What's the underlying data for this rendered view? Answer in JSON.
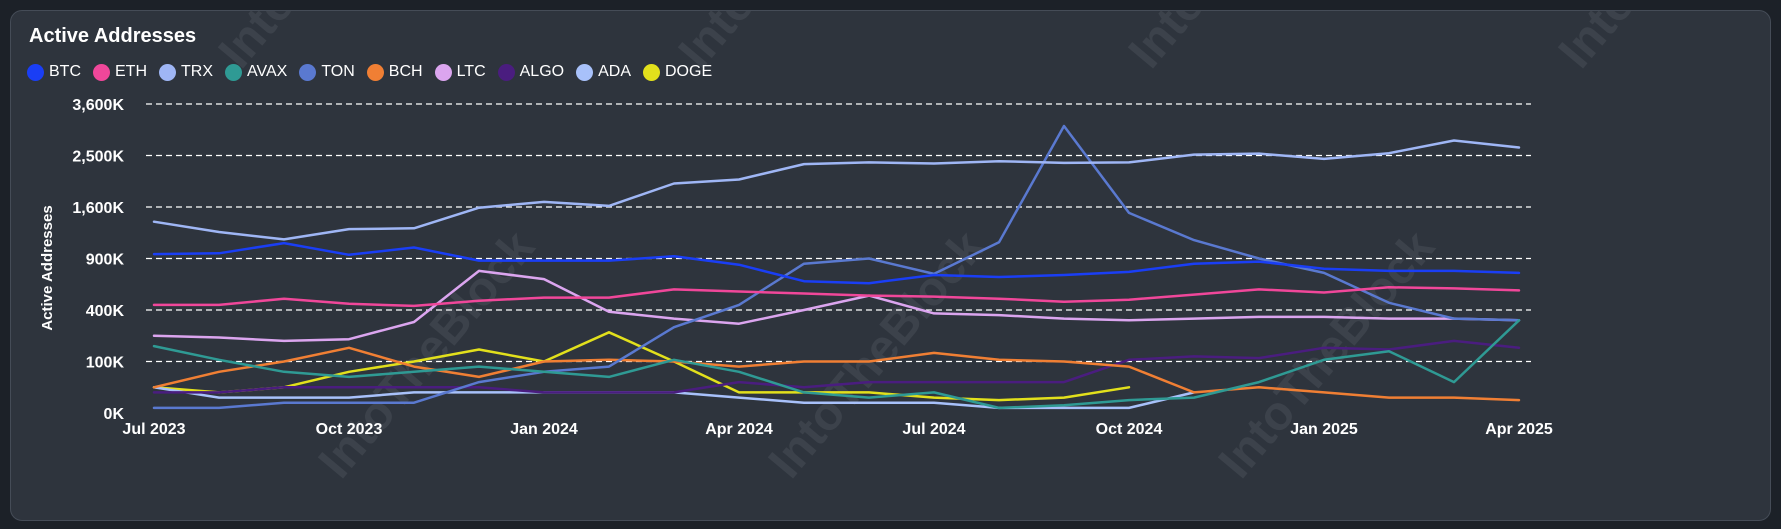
{
  "chart_data": {
    "type": "line",
    "title": "Active Addresses",
    "ylabel": "Active Addresses",
    "xlabel": "",
    "watermark": "IntoTheBlock",
    "y_ticks": [
      {
        "value": 0,
        "label": "0K"
      },
      {
        "value": 100000,
        "label": "100K"
      },
      {
        "value": 400000,
        "label": "400K"
      },
      {
        "value": 900000,
        "label": "900K"
      },
      {
        "value": 1600000,
        "label": "1,600K"
      },
      {
        "value": 2500000,
        "label": "2,500K"
      },
      {
        "value": 3600000,
        "label": "3,600K"
      }
    ],
    "x_ticks": [
      {
        "index": 0,
        "label": "Jul 2023"
      },
      {
        "index": 3,
        "label": "Oct 2023"
      },
      {
        "index": 6,
        "label": "Jan 2024"
      },
      {
        "index": 9,
        "label": "Apr 2024"
      },
      {
        "index": 12,
        "label": "Jul 2024"
      },
      {
        "index": 15,
        "label": "Oct 2024"
      },
      {
        "index": 18,
        "label": "Jan 2025"
      },
      {
        "index": 21,
        "label": "Apr 2025"
      }
    ],
    "x": [
      "Jul 2023",
      "Aug 2023",
      "Sep 2023",
      "Oct 2023",
      "Nov 2023",
      "Dec 2023",
      "Jan 2024",
      "Feb 2024",
      "Mar 2024",
      "Apr 2024",
      "May 2024",
      "Jun 2024",
      "Jul 2024",
      "Aug 2024",
      "Sep 2024",
      "Oct 2024",
      "Nov 2024",
      "Dec 2024",
      "Jan 2025",
      "Feb 2025",
      "Mar 2025",
      "Apr 2025"
    ],
    "series": [
      {
        "name": "BTC",
        "color": "#1a3ef5",
        "values": [
          960000,
          970000,
          1110000,
          950000,
          1050000,
          880000,
          880000,
          880000,
          930000,
          840000,
          680000,
          660000,
          740000,
          720000,
          740000,
          770000,
          850000,
          870000,
          800000,
          780000,
          780000,
          760000
        ]
      },
      {
        "name": "ETH",
        "color": "#f0479a",
        "values": [
          450000,
          450000,
          510000,
          460000,
          440000,
          490000,
          520000,
          520000,
          600000,
          580000,
          560000,
          540000,
          530000,
          510000,
          480000,
          500000,
          550000,
          600000,
          570000,
          620000,
          610000,
          590000
        ]
      },
      {
        "name": "TRX",
        "color": "#9fb6f5",
        "values": [
          1400000,
          1260000,
          1160000,
          1300000,
          1310000,
          1590000,
          1690000,
          1620000,
          2010000,
          2080000,
          2350000,
          2380000,
          2360000,
          2400000,
          2370000,
          2380000,
          2520000,
          2540000,
          2440000,
          2550000,
          2820000,
          2670000
        ]
      },
      {
        "name": "AVAX",
        "color": "#2f9a94",
        "values": [
          190000,
          110000,
          80000,
          70000,
          80000,
          90000,
          80000,
          70000,
          110000,
          80000,
          40000,
          30000,
          40000,
          10000,
          15000,
          25000,
          30000,
          60000,
          110000,
          160000,
          60000,
          340000
        ]
      },
      {
        "name": "TON",
        "color": "#5a79d0",
        "values": [
          10000,
          10000,
          20000,
          20000,
          20000,
          60000,
          80000,
          90000,
          300000,
          450000,
          850000,
          900000,
          750000,
          1120000,
          3130000,
          1520000,
          1150000,
          900000,
          760000,
          470000,
          350000,
          340000
        ]
      },
      {
        "name": "BCH",
        "color": "#f07f34",
        "values": [
          50000,
          80000,
          100000,
          180000,
          90000,
          70000,
          100000,
          110000,
          100000,
          90000,
          100000,
          100000,
          150000,
          110000,
          100000,
          90000,
          40000,
          50000,
          40000,
          30000,
          30000,
          25000
        ]
      },
      {
        "name": "LTC",
        "color": "#dba5ef",
        "values": [
          250000,
          240000,
          220000,
          230000,
          330000,
          780000,
          700000,
          390000,
          350000,
          320000,
          400000,
          540000,
          380000,
          370000,
          350000,
          340000,
          350000,
          360000,
          360000,
          350000,
          350000,
          340000
        ]
      },
      {
        "name": "ALGO",
        "color": "#4a1d7f",
        "values": [
          40000,
          40000,
          50000,
          50000,
          50000,
          50000,
          40000,
          40000,
          40000,
          60000,
          50000,
          60000,
          60000,
          60000,
          60000,
          110000,
          130000,
          120000,
          180000,
          170000,
          220000,
          180000
        ]
      },
      {
        "name": "ADA",
        "color": "#a8c1fa",
        "values": [
          50000,
          30000,
          30000,
          30000,
          40000,
          40000,
          40000,
          40000,
          40000,
          30000,
          20000,
          20000,
          20000,
          10000,
          10000,
          10000,
          40000,
          null,
          null,
          null,
          null,
          null
        ]
      },
      {
        "name": "DOGE",
        "color": "#e2e01c",
        "values": [
          50000,
          40000,
          50000,
          80000,
          100000,
          170000,
          100000,
          270000,
          100000,
          40000,
          40000,
          40000,
          30000,
          25000,
          30000,
          50000,
          null,
          null,
          null,
          null,
          null,
          null
        ]
      }
    ]
  }
}
